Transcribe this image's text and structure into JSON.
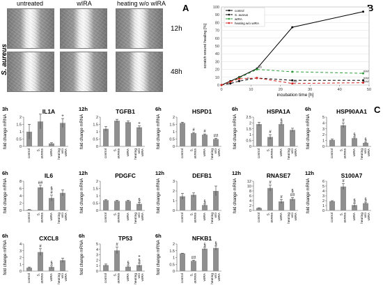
{
  "panel_letters": {
    "a": "A",
    "b": "B",
    "c": "C"
  },
  "photos": {
    "columns": [
      "untreated",
      "wIRA",
      "heating w/o wIRA"
    ],
    "rows": [
      "12h",
      "48h"
    ],
    "side_label": "S. aureus"
  },
  "chart_data": [
    {
      "id": "healing",
      "type": "line",
      "title": "",
      "xlabel": "incubation time [h]",
      "ylabel": "scratch wound healing [%]",
      "xlim": [
        0,
        50
      ],
      "ylim": [
        0,
        100
      ],
      "xticks": [
        0,
        10,
        20,
        30,
        40,
        50
      ],
      "yticks": [
        0,
        10,
        20,
        30,
        40,
        50,
        60,
        70,
        80,
        90,
        100
      ],
      "legend_position": "top-left",
      "series": [
        {
          "name": "control",
          "color": "#000000",
          "dash": "",
          "x": [
            0,
            3,
            6,
            12,
            24,
            48
          ],
          "y": [
            0,
            5,
            10,
            21,
            74,
            94
          ]
        },
        {
          "name": "S. aureus",
          "color": "#000000",
          "dash": "4,3",
          "x": [
            0,
            3,
            6,
            12,
            24,
            48
          ],
          "y": [
            0,
            2,
            5,
            9,
            6,
            6
          ]
        },
        {
          "name": "wIRA",
          "color": "#2e9c3a",
          "dash": "4,3",
          "x": [
            0,
            3,
            6,
            12,
            24,
            48
          ],
          "y": [
            0,
            4,
            9,
            20,
            17,
            15
          ]
        },
        {
          "name": "heating w/o wIRA",
          "color": "#d42020",
          "dash": "4,3",
          "x": [
            0,
            3,
            6,
            12,
            24,
            48
          ],
          "y": [
            0,
            4,
            8,
            9,
            2,
            3
          ]
        }
      ],
      "annotations": [
        {
          "text": "§§",
          "x": 13,
          "y": 22
        },
        {
          "text": "#",
          "x": 9,
          "y": 7
        },
        {
          "text": "##",
          "x": 25,
          "y": 3
        },
        {
          "text": "###",
          "x": 49,
          "y": 16
        },
        {
          "text": "###",
          "x": 49,
          "y": 7
        },
        {
          "text": "###",
          "x": 49,
          "y": 3
        }
      ]
    },
    {
      "id": "il1a",
      "type": "bar",
      "title": "IL1A",
      "time": "3h",
      "ylabel": "fold change mRNA",
      "categories": [
        "control",
        "S. aureus",
        "wIRA",
        "heating w/o wIRA"
      ],
      "values": [
        1.0,
        1.7,
        0.2,
        1.6
      ],
      "errors": [
        0.5,
        0.5,
        0.05,
        0.3
      ],
      "ylim": [
        0,
        2
      ],
      "yticks": [
        0,
        0.5,
        1,
        1.5,
        2
      ],
      "marks": [
        "",
        "",
        "",
        "+"
      ]
    },
    {
      "id": "tgfb1",
      "type": "bar",
      "title": "TGFB1",
      "time": "12h",
      "ylabel": "fold change mRNA",
      "categories": [
        "control",
        "S. aureus",
        "wIRA",
        "heating w/o wIRA"
      ],
      "values": [
        1.2,
        1.75,
        1.65,
        1.3
      ],
      "errors": [
        0.15,
        0.1,
        0.08,
        0.1
      ],
      "ylim": [
        0,
        2
      ],
      "yticks": [
        0,
        0.5,
        1,
        1.5,
        2
      ],
      "marks": [
        "",
        "",
        "",
        "+"
      ]
    },
    {
      "id": "hspd1",
      "type": "bar",
      "title": "HSPD1",
      "time": "6h",
      "ylabel": "fold change mRNA",
      "categories": [
        "control",
        "S. aureus",
        "wIRA",
        "heating w/o wIRA"
      ],
      "values": [
        1.6,
        0.9,
        0.8,
        0.5
      ],
      "errors": [
        0.05,
        0.05,
        0.05,
        0.05
      ],
      "ylim": [
        0,
        2
      ],
      "yticks": [
        0,
        0.5,
        1,
        1.5,
        2
      ],
      "marks": [
        "",
        "#",
        "#",
        "##"
      ]
    },
    {
      "id": "hspa1a",
      "type": "bar",
      "title": "HSPA1A",
      "time": "6h",
      "ylabel": "fold change mRNA",
      "categories": [
        "control",
        "S. aureus",
        "wIRA",
        "heating w/o wIRA"
      ],
      "values": [
        1.9,
        0.8,
        1.9,
        1.4
      ],
      "errors": [
        0.15,
        0.2,
        0.1,
        0.15
      ],
      "ylim": [
        0,
        2.5
      ],
      "yticks": [
        0,
        0.5,
        1,
        1.5,
        2,
        2.5
      ],
      "marks": [
        "",
        "#",
        "§",
        ""
      ]
    },
    {
      "id": "hsp90aa1",
      "type": "bar",
      "title": "HSP90AA1",
      "time": "6h",
      "ylabel": "fold change mRNA",
      "categories": [
        "control",
        "S. aureus",
        "wIRA",
        "heating w/o wIRA"
      ],
      "values": [
        1.1,
        3.6,
        1.4,
        0.6
      ],
      "errors": [
        0.15,
        0.4,
        0.15,
        0.1
      ],
      "ylim": [
        0,
        5
      ],
      "yticks": [
        0,
        1,
        2,
        3,
        4,
        5
      ],
      "marks": [
        "",
        "#",
        "§",
        "§"
      ]
    },
    {
      "id": "il6",
      "type": "bar",
      "title": "IL6",
      "time": "6h",
      "ylabel": "fold change mRNA",
      "categories": [
        "control",
        "S. aureus",
        "wIRA",
        "heating w/o wIRA"
      ],
      "values": [
        0.2,
        6.3,
        3.4,
        4.8
      ],
      "errors": [
        0.05,
        0.6,
        0.8,
        0.8
      ],
      "ylim": [
        0,
        8
      ],
      "yticks": [
        0,
        2,
        4,
        6,
        8
      ],
      "marks": [
        "",
        "##",
        "§ #",
        ""
      ]
    },
    {
      "id": "pdgfc",
      "type": "bar",
      "title": "PDGFC",
      "time": "12h",
      "ylabel": "fold change mRNA",
      "categories": [
        "control",
        "S. aureus",
        "wIRA",
        "heating w/o wIRA"
      ],
      "values": [
        0.7,
        0.65,
        0.65,
        0.45
      ],
      "errors": [
        0.05,
        0.05,
        0.05,
        0.1
      ],
      "ylim": [
        0,
        2
      ],
      "yticks": [
        0,
        0.5,
        1,
        1.5,
        2
      ],
      "marks": [
        "",
        "",
        "",
        "§"
      ]
    },
    {
      "id": "defb1",
      "type": "bar",
      "title": "DEFB1",
      "time": "12h",
      "ylabel": "fold change mRNA",
      "categories": [
        "control",
        "S. aureus",
        "wIRA",
        "heating w/o wIRA"
      ],
      "values": [
        1.45,
        1.6,
        0.55,
        2.0
      ],
      "errors": [
        0.3,
        0.2,
        0.1,
        0.5
      ],
      "ylim": [
        0,
        3
      ],
      "yticks": [
        0,
        1,
        2,
        3
      ],
      "marks": [
        "",
        "",
        "§",
        ""
      ]
    },
    {
      "id": "rnase7",
      "type": "bar",
      "title": "RNASE7",
      "time": "12h",
      "ylabel": "fold change mRNA",
      "categories": [
        "control",
        "S. aureus",
        "wIRA",
        "heating w/o wIRA"
      ],
      "values": [
        1.0,
        9.2,
        3.7,
        4.7
      ],
      "errors": [
        0.1,
        1.2,
        0.8,
        0.6
      ],
      "ylim": [
        0,
        12
      ],
      "yticks": [
        0,
        2,
        4,
        6,
        8,
        10,
        12
      ],
      "marks": [
        "",
        "#",
        "#",
        "§ ##"
      ]
    },
    {
      "id": "s100a7",
      "type": "bar",
      "title": "S100A7",
      "time": "12h",
      "ylabel": "fold change mRNA",
      "categories": [
        "control",
        "S. aureus",
        "wIRA",
        "heating w/o wIRA"
      ],
      "values": [
        1.9,
        4.9,
        1.1,
        1.5
      ],
      "errors": [
        0.1,
        0.6,
        0.4,
        0.2
      ],
      "ylim": [
        0,
        6
      ],
      "yticks": [
        0,
        1,
        2,
        3,
        4,
        5,
        6
      ],
      "marks": [
        "",
        "#",
        "§",
        "§"
      ]
    },
    {
      "id": "cxcl8",
      "type": "bar",
      "title": "CXCL8",
      "time": "6h",
      "ylabel": "fold change mRNA",
      "categories": [
        "control",
        "S. aureus",
        "wIRA",
        "heating w/o wIRA"
      ],
      "values": [
        0.5,
        2.8,
        0.6,
        1.6
      ],
      "errors": [
        0.1,
        0.5,
        0.2,
        0.3
      ],
      "ylim": [
        0,
        4
      ],
      "yticks": [
        0,
        1,
        2,
        3,
        4
      ],
      "marks": [
        "",
        "#",
        "§",
        ""
      ]
    },
    {
      "id": "tp53",
      "type": "bar",
      "title": "TP53",
      "time": "6h",
      "ylabel": "fold change mRNA",
      "categories": [
        "control",
        "S. aureus",
        "wIRA",
        "heating w/o wIRA"
      ],
      "values": [
        1.1,
        3.8,
        0.8,
        1.1
      ],
      "errors": [
        0.2,
        0.6,
        0.2,
        0.4
      ],
      "ylim": [
        0,
        5
      ],
      "yticks": [
        0,
        1,
        2,
        3,
        4,
        5
      ],
      "marks": [
        "",
        "#",
        "§",
        "+ §"
      ]
    },
    {
      "id": "nfkb1",
      "type": "bar",
      "title": "NFKB1",
      "time": "6h",
      "ylabel": "fold change mRNA",
      "categories": [
        "control",
        "S. aureus",
        "wIRA",
        "heating w/o wIRA"
      ],
      "values": [
        1.3,
        0.75,
        1.65,
        1.7
      ],
      "errors": [
        0.02,
        0.05,
        0.1,
        0.15
      ],
      "ylim": [
        0,
        2
      ],
      "yticks": [
        0,
        0.5,
        1,
        1.5,
        2
      ],
      "marks": [
        "",
        "##",
        "§",
        "§"
      ]
    }
  ]
}
